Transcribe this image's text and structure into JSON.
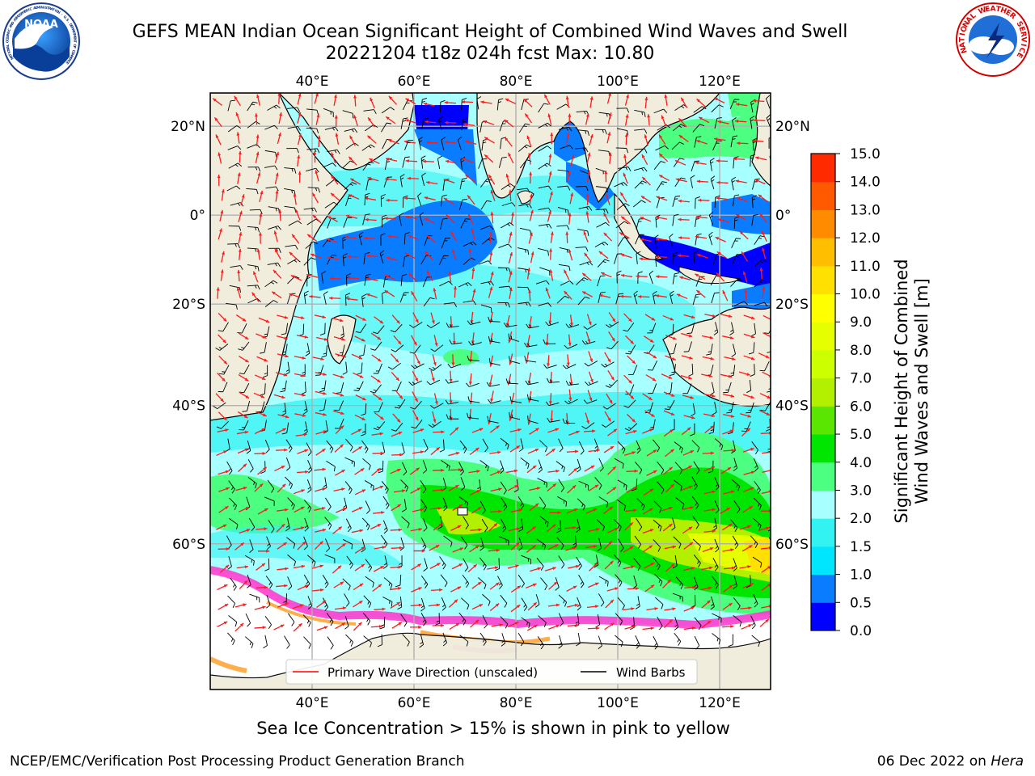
{
  "header": {
    "title_line1": "GEFS MEAN Indian Ocean Significant Height of Combined Wind Waves and Swell",
    "title_line2": "20221204 t18z 024h fcst   Max: 10.80",
    "left_logo_text": "NOAA",
    "left_logo_ring": "NATIONAL OCEANIC AND ATMOSPHERIC ADMINISTRATION · U.S. DEPARTMENT OF COMMERCE",
    "right_logo_ring": "NATIONAL WEATHER SERVICE"
  },
  "map": {
    "lon_range": [
      20,
      130
    ],
    "lat_range": [
      -73,
      27
    ],
    "lon_ticks": [
      "40°E",
      "60°E",
      "80°E",
      "100°E",
      "120°E"
    ],
    "lon_tick_values": [
      40,
      60,
      80,
      100,
      120
    ],
    "lat_ticks": [
      "20°N",
      "0°",
      "20°S",
      "40°S",
      "60°S"
    ],
    "lat_tick_values": [
      20,
      0,
      -20,
      -40,
      -60
    ],
    "grid": true,
    "legend": {
      "placement": "bottom-center",
      "items": [
        "Primary Wave Direction (unscaled)",
        "Wind Barbs"
      ],
      "colors": [
        "#ff0000",
        "#000000"
      ]
    }
  },
  "colorbar": {
    "title_line1": "Significant Height of Combined",
    "title_line2": "Wind Waves and Swell [m]",
    "labels": [
      "0.0",
      "0.5",
      "1.0",
      "1.5",
      "2.0",
      "3.0",
      "4.0",
      "5.0",
      "6.0",
      "7.0",
      "8.0",
      "9.0",
      "10.0",
      "11.0",
      "12.0",
      "13.0",
      "14.0",
      "15.0"
    ],
    "colors": [
      "#0000ff",
      "#0a7cff",
      "#00e6ff",
      "#33f2f2",
      "#a8ffff",
      "#4dff80",
      "#00e600",
      "#5ae600",
      "#b3f000",
      "#ccff00",
      "#e6ff00",
      "#ffff00",
      "#ffe000",
      "#ffbf00",
      "#ff8c00",
      "#ff5a00",
      "#ff2a00"
    ]
  },
  "footer": {
    "ice_note": "Sea Ice Concentration > 15% is shown in pink to yellow",
    "credit_left": "NCEP/EMC/Verification Post Processing Product Generation Branch",
    "credit_right_prefix": "06 Dec 2022 on",
    "credit_right_machine": "Hera"
  }
}
